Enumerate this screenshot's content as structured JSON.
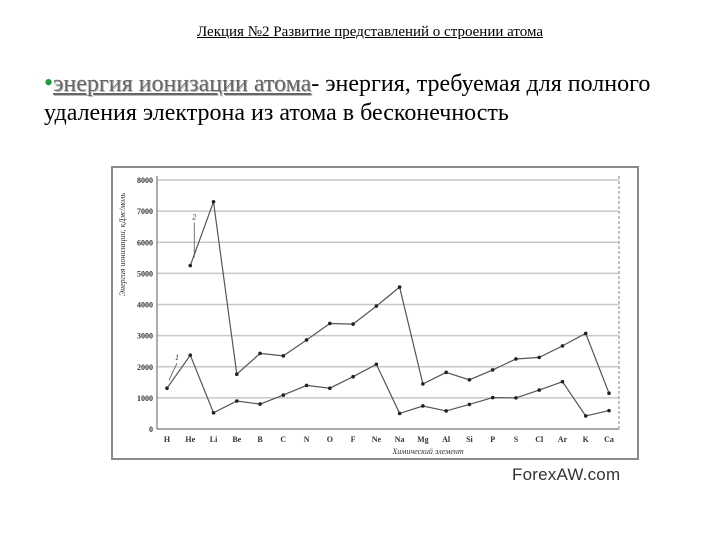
{
  "slide": {
    "title": "Лекция №2 Развитие представлений о строении атома",
    "bullet_term": "энергия ионизации атома",
    "bullet_rest": "- энергия, требуемая для полного удаления электрона из атома в бесконечность",
    "watermark": "ForexAW.com"
  },
  "chart_data": {
    "type": "line",
    "title": "",
    "xlabel": "Химический элемент",
    "ylabel": "Энергия ионизации, кДж/моль",
    "categories": [
      "H",
      "He",
      "Li",
      "Be",
      "B",
      "C",
      "N",
      "O",
      "F",
      "Ne",
      "Na",
      "Mg",
      "Al",
      "Si",
      "P",
      "S",
      "Cl",
      "Ar",
      "K",
      "Ca"
    ],
    "ylim": [
      0,
      8000
    ],
    "yticks": [
      0,
      1000,
      2000,
      3000,
      4000,
      5000,
      6000,
      7000,
      8000
    ],
    "series": [
      {
        "name": "1",
        "values": [
          1310,
          2370,
          520,
          900,
          800,
          1090,
          1400,
          1310,
          1680,
          2080,
          500,
          740,
          580,
          790,
          1010,
          1000,
          1250,
          1520,
          420,
          590
        ]
      },
      {
        "name": "2",
        "values": [
          null,
          5250,
          7300,
          1760,
          2430,
          2350,
          2860,
          3390,
          3370,
          3950,
          4560,
          1450,
          1820,
          1580,
          1900,
          2250,
          2300,
          2670,
          3070,
          1150
        ]
      }
    ],
    "grid": true
  }
}
